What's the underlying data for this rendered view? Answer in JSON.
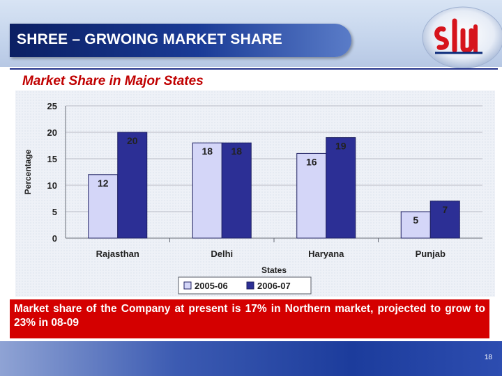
{
  "slide": {
    "title": "SHREE – GRWOING MARKET SHARE",
    "subtitle": "Market Share in Major States",
    "callout": "Market share of the Company at present is 17% in Northern market, projected to grow to 23% in 08-09",
    "page_number": "18",
    "logo": {
      "icon": "shree-logo-icon",
      "colors": [
        "#d6141c",
        "#0b2a7a"
      ]
    }
  },
  "colors": {
    "series_1": "#d4d6f8",
    "series_2": "#2c2f95",
    "title_bar": "#12307f",
    "subtitle": "#c00000",
    "callout_bg": "#d40000"
  },
  "chart_data": {
    "type": "bar",
    "categories": [
      "Rajasthan",
      "Delhi",
      "Haryana",
      "Punjab"
    ],
    "series": [
      {
        "name": "2005-06",
        "values": [
          12,
          18,
          16,
          5
        ]
      },
      {
        "name": "2006-07",
        "values": [
          20,
          18,
          19,
          7
        ]
      }
    ],
    "title": "",
    "xlabel": "States",
    "ylabel": "Percentage",
    "ylim": [
      0,
      25
    ],
    "yticks": [
      0,
      5,
      10,
      15,
      20,
      25
    ],
    "grid": true,
    "legend": "bottom"
  }
}
